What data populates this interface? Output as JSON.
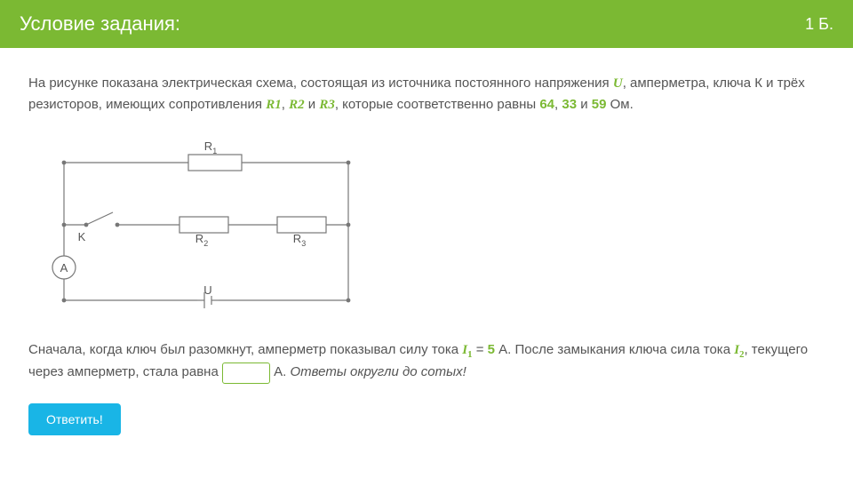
{
  "header": {
    "title": "Условие задания:",
    "points": "1 Б."
  },
  "problem": {
    "p1_a": "На рисунке показана электрическая схема, состоящая из источника постоянного напряжения ",
    "U": "U",
    "p1_b": ", амперметра, ключа К и трёх резисторов, имеющих сопротивления ",
    "R1": "R1",
    "comma1": ", ",
    "R2": "R2",
    "and": " и ",
    "R3": "R3",
    "p1_c": ", которые соответственно равны ",
    "v1": "64",
    "comma2": ", ",
    "v2": "33",
    "and2": " и ",
    "v3": "59",
    "p1_d": " Ом."
  },
  "question": {
    "q1": "Сначала, когда ключ был разомкнут, амперметр показывал силу тока ",
    "I1": "I",
    "I1_sub": "1",
    "eq": " = ",
    "I1_val": "5",
    "q2": " А. После замыкания ключа сила тока ",
    "I2": "I",
    "I2_sub": "2",
    "q3": ", текущего через амперметр, стала равна ",
    "unit": " А. ",
    "note": "Ответы округли до сотых!"
  },
  "button": {
    "label": "Ответить!"
  },
  "circuit": {
    "labels": {
      "R1": "R",
      "R1_sub": "1",
      "R2": "R",
      "R2_sub": "2",
      "R3": "R",
      "R3_sub": "3",
      "K": "K",
      "A": "A",
      "U": "U"
    },
    "stroke": "#777777",
    "text_color": "#555555",
    "fill": "#ffffff",
    "line_width": 1.2
  }
}
